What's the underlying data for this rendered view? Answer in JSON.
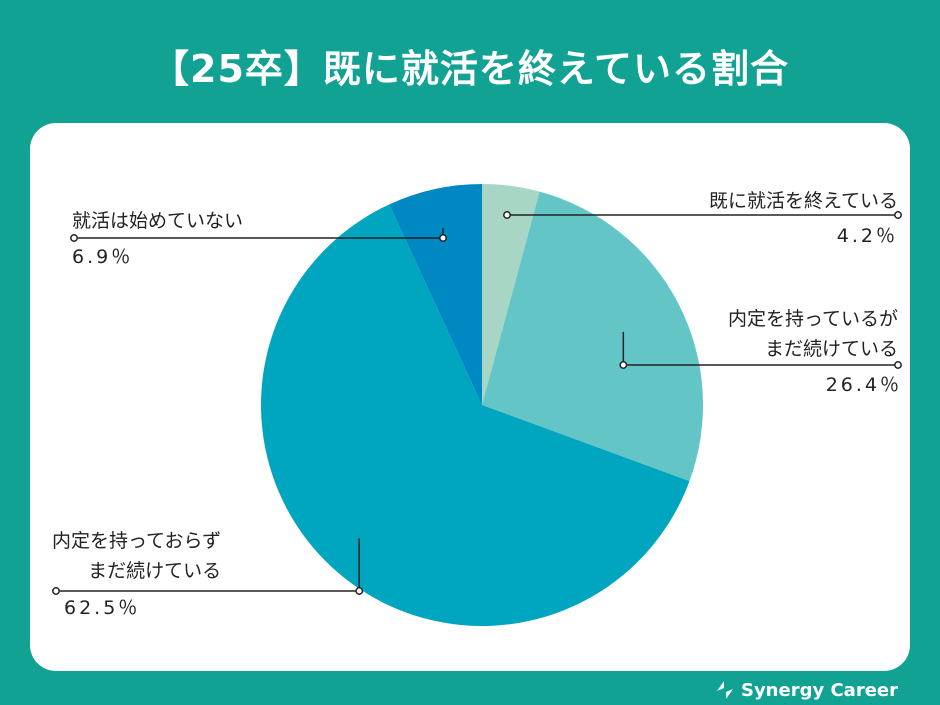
{
  "chart_data": {
    "type": "pie",
    "title": "【25卒】既に就活を終えている割合",
    "slices": [
      {
        "label": [
          "既に就活を終えている"
        ],
        "value": 4.2,
        "value_label": "4.2％",
        "color": "#a7d6c4"
      },
      {
        "label": [
          "内定を持っているが",
          "まだ続けている"
        ],
        "value": 26.4,
        "value_label": "26.4％",
        "color": "#63c5c5"
      },
      {
        "label": [
          "内定を持っておらず",
          "まだ続けている"
        ],
        "value": 62.5,
        "value_label": "62.5％",
        "color": "#00a5c0"
      },
      {
        "label": [
          "就活は始めていない"
        ],
        "value": 6.9,
        "value_label": "6.9％",
        "color": "#0088c2"
      }
    ]
  },
  "brand": {
    "name": "Synergy Career",
    "color": "#ffffff"
  }
}
